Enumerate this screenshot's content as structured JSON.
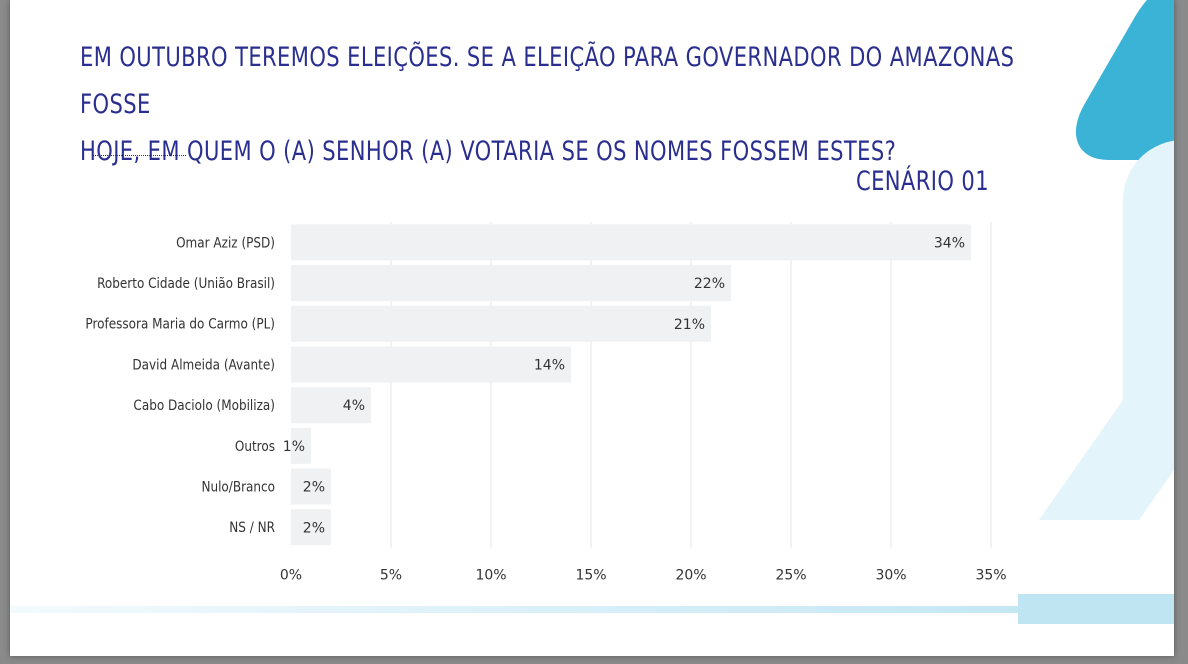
{
  "slide": {
    "title_line1": "EM OUTUBRO TEREMOS ELEIÇÕES. SE A ELEIÇÃO PARA GOVERNADOR DO AMAZONAS FOSSE",
    "title_line2": "HOJE, EM QUEM O (A) SENHOR (A) VOTARIA SE OS NOMES FOSSEM ESTES?",
    "scenario": "CENÁRIO 01"
  },
  "colors": {
    "title": "#2a2f8f",
    "bar": "#f0f1f2",
    "grid": "#e6e6e6",
    "label": "#333333",
    "accent": "#3bb3d6",
    "accent_light": "#e3f4fa"
  },
  "chart_data": {
    "type": "bar",
    "orientation": "horizontal",
    "categories": [
      "Omar Aziz (PSD)",
      "Roberto Cidade (União Brasil)",
      "Professora Maria do Carmo (PL)",
      "David Almeida (Avante)",
      "Cabo Daciolo (Mobiliza)",
      "Outros",
      "Nulo/Branco",
      "NS / NR"
    ],
    "values": [
      34,
      22,
      21,
      14,
      4,
      1,
      2,
      2
    ],
    "value_labels": [
      "34%",
      "22%",
      "21%",
      "14%",
      "4%",
      "1%",
      "2%",
      "2%"
    ],
    "xticks": [
      0,
      5,
      10,
      15,
      20,
      25,
      30,
      35
    ],
    "xtick_labels": [
      "0%",
      "5%",
      "10%",
      "15%",
      "20%",
      "25%",
      "30%",
      "35%"
    ],
    "xlim": [
      0,
      35
    ],
    "grid": true,
    "legend": "none"
  }
}
